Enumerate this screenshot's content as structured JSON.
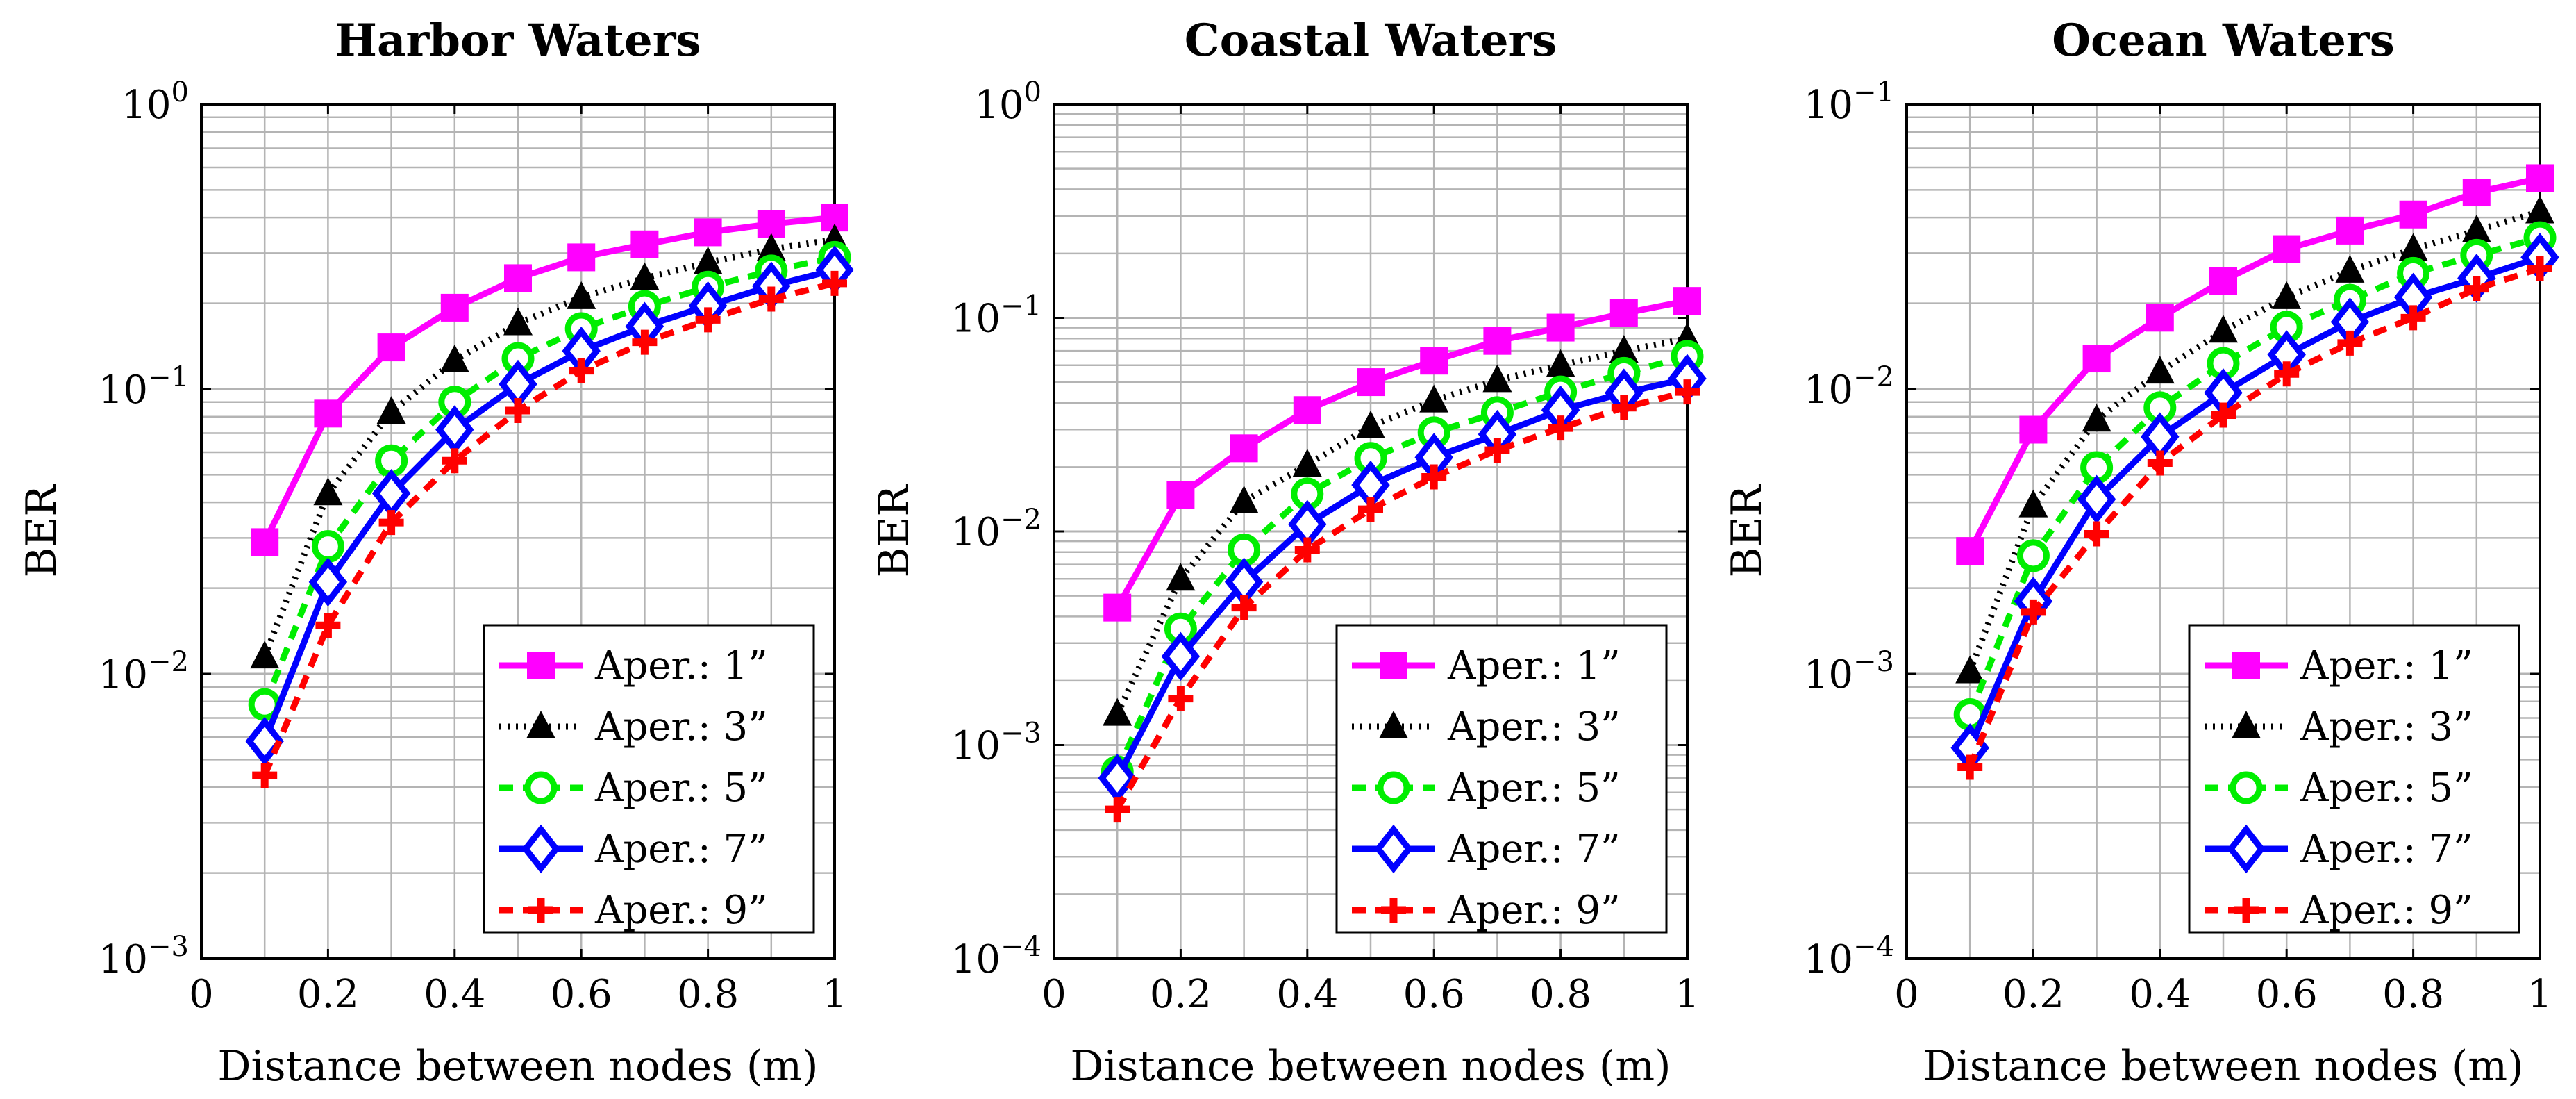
{
  "chart_data": [
    {
      "type": "line",
      "title": "Harbor Waters",
      "xlabel": "Distance between nodes (m)",
      "ylabel": "BER",
      "yscale": "log",
      "xlim": [
        0,
        1
      ],
      "ylim": [
        0.001,
        1
      ],
      "grid": true,
      "legend_position": "bottom-right",
      "x": [
        0.1,
        0.2,
        0.3,
        0.4,
        0.5,
        0.6,
        0.7,
        0.8,
        0.9,
        1.0
      ],
      "xticks": [
        {
          "value": 0,
          "label": "0"
        },
        {
          "value": 0.2,
          "label": "0.2"
        },
        {
          "value": 0.4,
          "label": "0.4"
        },
        {
          "value": 0.6,
          "label": "0.6"
        },
        {
          "value": 0.8,
          "label": "0.8"
        },
        {
          "value": 1,
          "label": "1"
        }
      ],
      "yticks": [
        {
          "value": 1,
          "base": "10",
          "exp": "0"
        },
        {
          "value": 0.1,
          "base": "10",
          "exp": "−1"
        },
        {
          "value": 0.01,
          "base": "10",
          "exp": "−2"
        },
        {
          "value": 0.001,
          "base": "10",
          "exp": "−3"
        }
      ],
      "series": [
        {
          "name": "Aper.: 1”",
          "values": [
            0.029,
            0.082,
            0.14,
            0.193,
            0.245,
            0.29,
            0.322,
            0.355,
            0.38,
            0.4
          ]
        },
        {
          "name": "Aper.: 3”",
          "values": [
            0.0115,
            0.043,
            0.083,
            0.126,
            0.17,
            0.21,
            0.245,
            0.278,
            0.31,
            0.335
          ]
        },
        {
          "name": "Aper.: 5”",
          "values": [
            0.0078,
            0.028,
            0.056,
            0.09,
            0.128,
            0.163,
            0.195,
            0.228,
            0.26,
            0.29
          ]
        },
        {
          "name": "Aper.: 7”",
          "values": [
            0.0058,
            0.021,
            0.043,
            0.072,
            0.104,
            0.136,
            0.166,
            0.196,
            0.23,
            0.262
          ]
        },
        {
          "name": "Aper.: 9”",
          "values": [
            0.0044,
            0.0148,
            0.034,
            0.056,
            0.084,
            0.116,
            0.146,
            0.175,
            0.207,
            0.235
          ]
        }
      ]
    },
    {
      "type": "line",
      "title": "Coastal Waters",
      "xlabel": "Distance between nodes (m)",
      "ylabel": "BER",
      "yscale": "log",
      "xlim": [
        0,
        1
      ],
      "ylim": [
        0.0001,
        1
      ],
      "grid": true,
      "legend_position": "bottom-right",
      "x": [
        0.1,
        0.2,
        0.3,
        0.4,
        0.5,
        0.6,
        0.7,
        0.8,
        0.9,
        1.0
      ],
      "xticks": [
        {
          "value": 0,
          "label": "0"
        },
        {
          "value": 0.2,
          "label": "0.2"
        },
        {
          "value": 0.4,
          "label": "0.4"
        },
        {
          "value": 0.6,
          "label": "0.6"
        },
        {
          "value": 0.8,
          "label": "0.8"
        },
        {
          "value": 1,
          "label": "1"
        }
      ],
      "yticks": [
        {
          "value": 1,
          "base": "10",
          "exp": "0"
        },
        {
          "value": 0.1,
          "base": "10",
          "exp": "−1"
        },
        {
          "value": 0.01,
          "base": "10",
          "exp": "−2"
        },
        {
          "value": 0.001,
          "base": "10",
          "exp": "−3"
        },
        {
          "value": 0.0001,
          "base": "10",
          "exp": "−4"
        }
      ],
      "series": [
        {
          "name": "Aper.: 1”",
          "values": [
            0.0044,
            0.0148,
            0.0245,
            0.037,
            0.05,
            0.063,
            0.078,
            0.09,
            0.105,
            0.12
          ]
        },
        {
          "name": "Aper.: 3”",
          "values": [
            0.0014,
            0.006,
            0.0138,
            0.0205,
            0.031,
            0.041,
            0.051,
            0.06,
            0.07,
            0.08
          ]
        },
        {
          "name": "Aper.: 5”",
          "values": [
            0.00075,
            0.0035,
            0.0082,
            0.015,
            0.022,
            0.029,
            0.036,
            0.045,
            0.055,
            0.066
          ]
        },
        {
          "name": "Aper.: 7”",
          "values": [
            0.0007,
            0.0026,
            0.0058,
            0.0108,
            0.0165,
            0.0222,
            0.0285,
            0.037,
            0.0445,
            0.052
          ]
        },
        {
          "name": "Aper.: 9”",
          "values": [
            0.0005,
            0.00165,
            0.0044,
            0.0082,
            0.0127,
            0.018,
            0.024,
            0.0305,
            0.038,
            0.045
          ]
        }
      ]
    },
    {
      "type": "line",
      "title": "Ocean Waters",
      "xlabel": "Distance between nodes (m)",
      "ylabel": "BER",
      "yscale": "log",
      "xlim": [
        0,
        1
      ],
      "ylim": [
        0.0001,
        0.1
      ],
      "grid": true,
      "legend_position": "bottom-right",
      "x": [
        0.1,
        0.2,
        0.3,
        0.4,
        0.5,
        0.6,
        0.7,
        0.8,
        0.9,
        1.0
      ],
      "xticks": [
        {
          "value": 0,
          "label": "0"
        },
        {
          "value": 0.2,
          "label": "0.2"
        },
        {
          "value": 0.4,
          "label": "0.4"
        },
        {
          "value": 0.6,
          "label": "0.6"
        },
        {
          "value": 0.8,
          "label": "0.8"
        },
        {
          "value": 1,
          "label": "1"
        }
      ],
      "yticks": [
        {
          "value": 0.1,
          "base": "10",
          "exp": "−1"
        },
        {
          "value": 0.01,
          "base": "10",
          "exp": "−2"
        },
        {
          "value": 0.001,
          "base": "10",
          "exp": "−3"
        },
        {
          "value": 0.0001,
          "base": "10",
          "exp": "−4"
        }
      ],
      "series": [
        {
          "name": "Aper.: 1”",
          "values": [
            0.0027,
            0.0072,
            0.0128,
            0.0178,
            0.024,
            0.031,
            0.036,
            0.041,
            0.049,
            0.055
          ]
        },
        {
          "name": "Aper.: 3”",
          "values": [
            0.00102,
            0.0039,
            0.0078,
            0.0115,
            0.016,
            0.021,
            0.026,
            0.031,
            0.036,
            0.042
          ]
        },
        {
          "name": "Aper.: 5”",
          "values": [
            0.00072,
            0.0026,
            0.0053,
            0.0086,
            0.0123,
            0.0165,
            0.0205,
            0.0255,
            0.0295,
            0.034
          ]
        },
        {
          "name": "Aper.: 7”",
          "values": [
            0.00055,
            0.0018,
            0.0041,
            0.0068,
            0.0097,
            0.0132,
            0.0172,
            0.021,
            0.0245,
            0.029
          ]
        },
        {
          "name": "Aper.: 9”",
          "values": [
            0.00047,
            0.00165,
            0.0031,
            0.0055,
            0.0081,
            0.0113,
            0.0145,
            0.0178,
            0.0225,
            0.0265
          ]
        }
      ]
    }
  ],
  "series_styles": [
    {
      "color": "#ff00ff",
      "dash": "",
      "marker": "square",
      "width": 9
    },
    {
      "color": "#000000",
      "dash": "3 9",
      "marker": "triangle",
      "width": 9
    },
    {
      "color": "#00ee00",
      "dash": "20 14",
      "marker": "circle",
      "width": 9
    },
    {
      "color": "#0000ff",
      "dash": "",
      "marker": "diamond",
      "width": 9
    },
    {
      "color": "#ff0000",
      "dash": "20 14",
      "marker": "plus",
      "width": 9
    }
  ]
}
